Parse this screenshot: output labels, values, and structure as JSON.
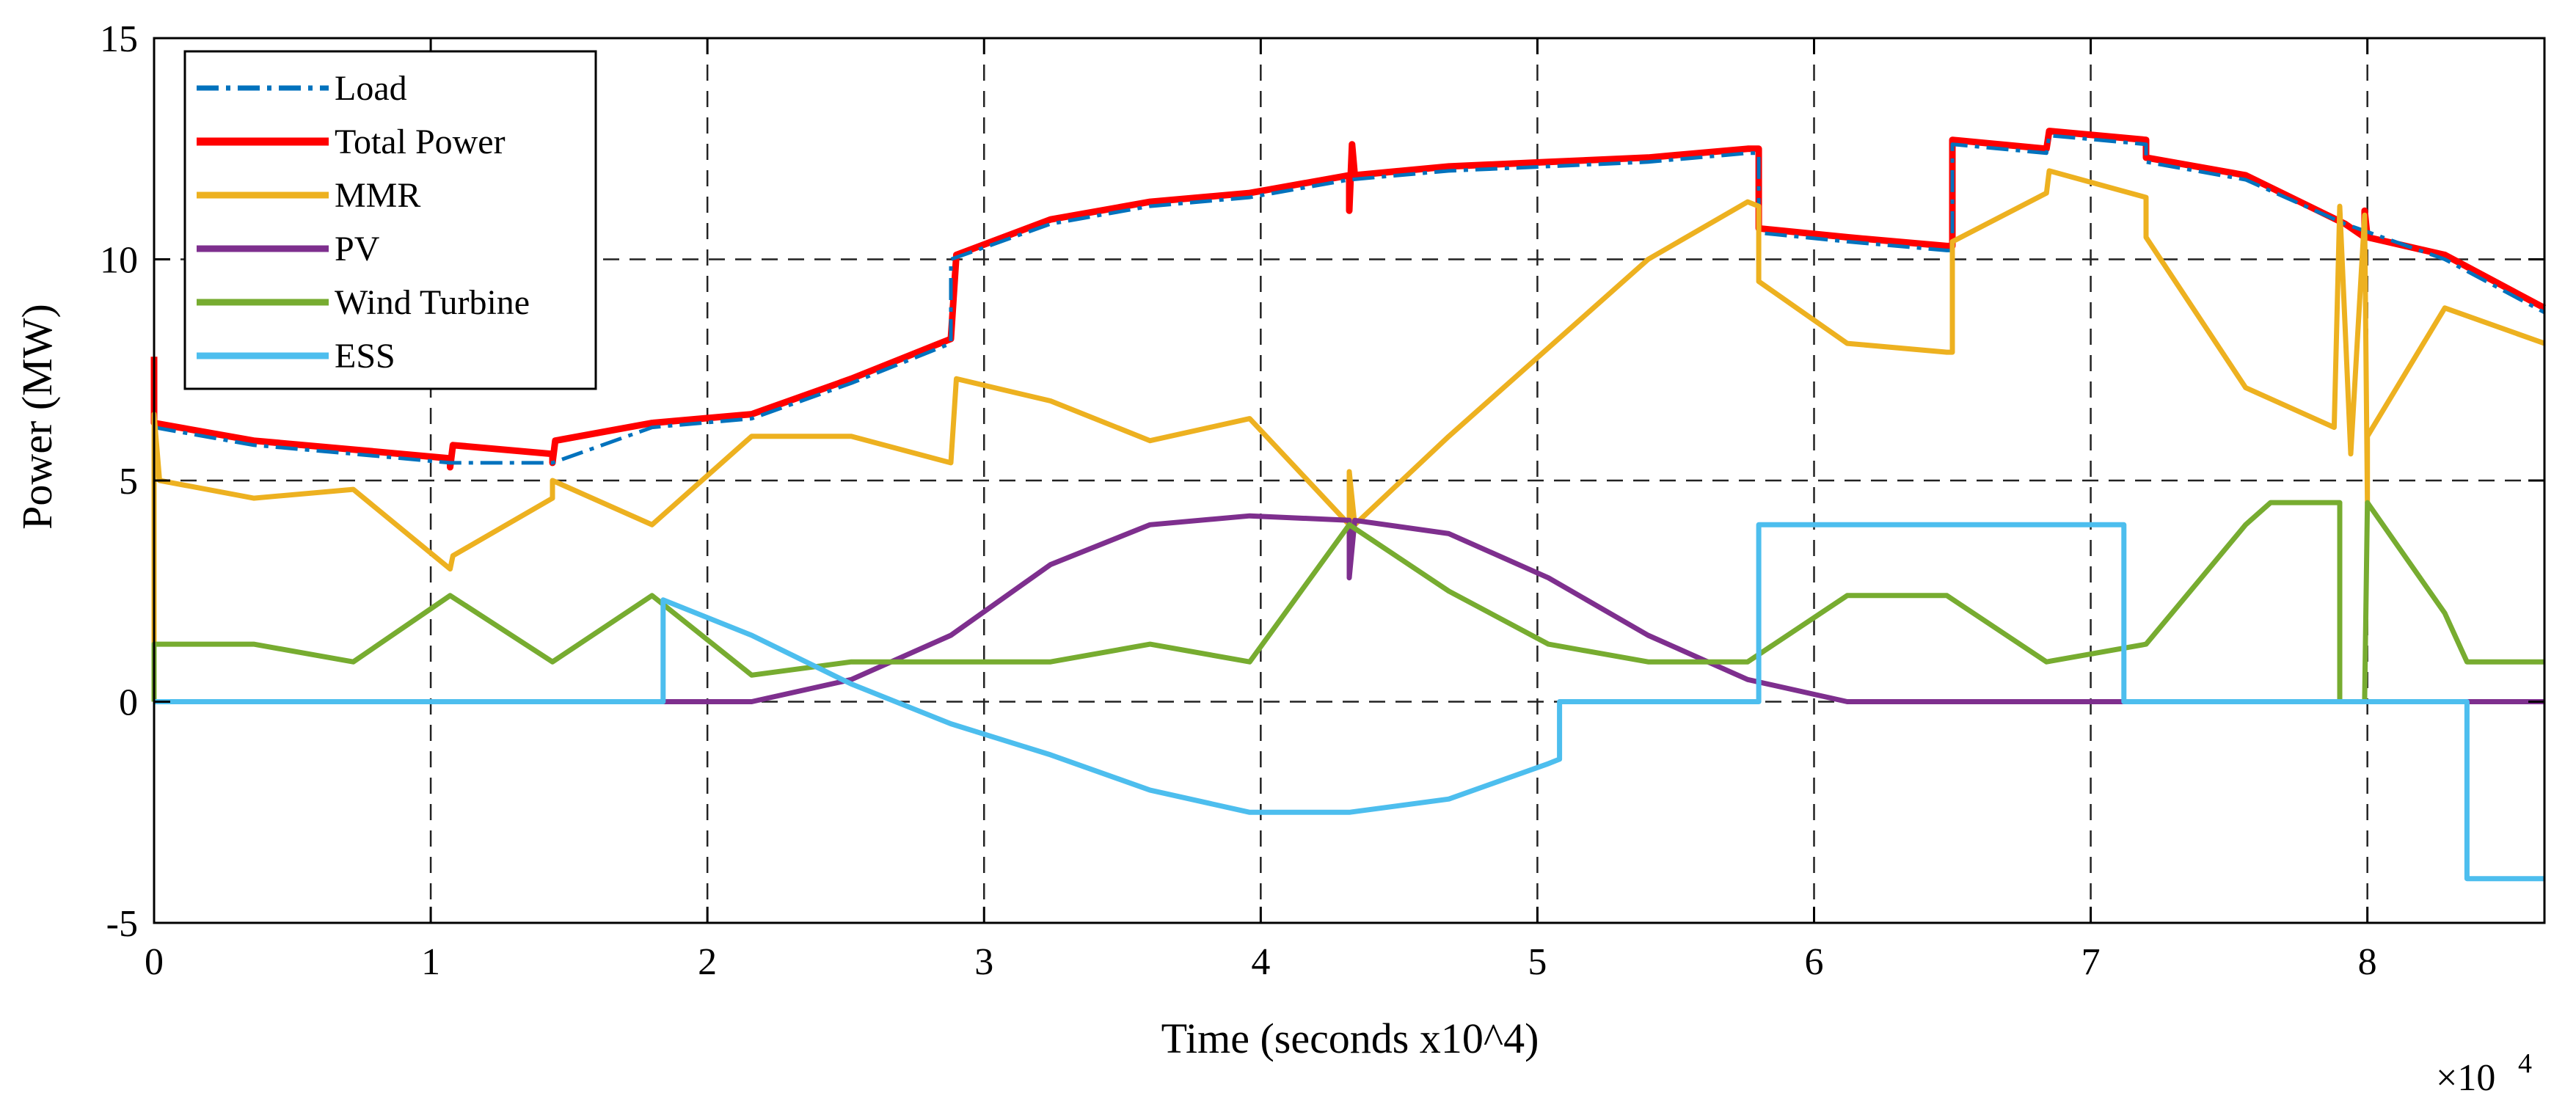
{
  "chart_data": {
    "type": "line",
    "title": "",
    "xlabel": "Time (seconds x10^4)",
    "ylabel": "Power (MW)",
    "x_exponent_label": "×10",
    "x_exponent_power": "4",
    "xlim": [
      0,
      8.64
    ],
    "ylim": [
      -5,
      15
    ],
    "xticks": [
      0,
      1,
      2,
      3,
      4,
      5,
      6,
      7,
      8
    ],
    "xtick_labels": [
      "0",
      "1",
      "2",
      "3",
      "4",
      "5",
      "6",
      "7",
      "8"
    ],
    "yticks": [
      -5,
      0,
      5,
      10,
      15
    ],
    "ytick_labels": [
      "-5",
      "0",
      "5",
      "10",
      "15"
    ],
    "grid": true,
    "legend_position": "top-left",
    "series": [
      {
        "name": "Load",
        "color": "#0072BD",
        "style": "dashdot",
        "width": 5,
        "points": [
          [
            0,
            6.2
          ],
          [
            0.36,
            5.8
          ],
          [
            0.72,
            5.6
          ],
          [
            1.07,
            5.4
          ],
          [
            1.44,
            5.4
          ],
          [
            1.8,
            6.2
          ],
          [
            2.16,
            6.4
          ],
          [
            2.52,
            7.2
          ],
          [
            2.88,
            8.1
          ],
          [
            2.88,
            10.0
          ],
          [
            3.24,
            10.8
          ],
          [
            3.6,
            11.2
          ],
          [
            3.96,
            11.4
          ],
          [
            4.32,
            11.8
          ],
          [
            4.68,
            12.0
          ],
          [
            5.04,
            12.1
          ],
          [
            5.4,
            12.2
          ],
          [
            5.76,
            12.4
          ],
          [
            5.8,
            12.4
          ],
          [
            5.8,
            10.6
          ],
          [
            6.12,
            10.4
          ],
          [
            6.48,
            10.2
          ],
          [
            6.5,
            10.2
          ],
          [
            6.5,
            12.6
          ],
          [
            6.84,
            12.4
          ],
          [
            6.85,
            12.8
          ],
          [
            7.2,
            12.6
          ],
          [
            7.2,
            12.2
          ],
          [
            7.56,
            11.8
          ],
          [
            7.92,
            10.8
          ],
          [
            8.28,
            10.0
          ],
          [
            8.64,
            8.8
          ]
        ]
      },
      {
        "name": "Total Power",
        "color": "#FF0000",
        "style": "solid",
        "width": 9,
        "points": [
          [
            0,
            7.8
          ],
          [
            0,
            6.3
          ],
          [
            0.36,
            5.9
          ],
          [
            0.72,
            5.7
          ],
          [
            1.07,
            5.5
          ],
          [
            1.07,
            5.3
          ],
          [
            1.08,
            5.8
          ],
          [
            1.44,
            5.6
          ],
          [
            1.44,
            5.4
          ],
          [
            1.45,
            5.9
          ],
          [
            1.8,
            6.3
          ],
          [
            2.16,
            6.5
          ],
          [
            2.52,
            7.3
          ],
          [
            2.88,
            8.2
          ],
          [
            2.9,
            10.1
          ],
          [
            3.24,
            10.9
          ],
          [
            3.6,
            11.3
          ],
          [
            3.96,
            11.5
          ],
          [
            4.32,
            11.9
          ],
          [
            4.32,
            11.1
          ],
          [
            4.33,
            12.6
          ],
          [
            4.34,
            11.9
          ],
          [
            4.68,
            12.1
          ],
          [
            5.04,
            12.2
          ],
          [
            5.4,
            12.3
          ],
          [
            5.76,
            12.5
          ],
          [
            5.8,
            12.5
          ],
          [
            5.8,
            10.7
          ],
          [
            6.12,
            10.5
          ],
          [
            6.48,
            10.3
          ],
          [
            6.5,
            10.3
          ],
          [
            6.5,
            12.7
          ],
          [
            6.84,
            12.5
          ],
          [
            6.85,
            12.9
          ],
          [
            7.2,
            12.7
          ],
          [
            7.2,
            12.3
          ],
          [
            7.56,
            11.9
          ],
          [
            7.92,
            10.8
          ],
          [
            7.99,
            10.5
          ],
          [
            7.99,
            11.1
          ],
          [
            8.0,
            10.5
          ],
          [
            8.28,
            10.1
          ],
          [
            8.64,
            8.9
          ]
        ]
      },
      {
        "name": "MMR",
        "color": "#EDB120",
        "style": "solid",
        "width": 7,
        "points": [
          [
            0,
            1.3
          ],
          [
            0,
            6.5
          ],
          [
            0.02,
            5.0
          ],
          [
            0.36,
            4.6
          ],
          [
            0.72,
            4.8
          ],
          [
            1.07,
            3.0
          ],
          [
            1.08,
            3.3
          ],
          [
            1.44,
            4.6
          ],
          [
            1.44,
            5.0
          ],
          [
            1.8,
            4.0
          ],
          [
            2.16,
            6.0
          ],
          [
            2.52,
            6.0
          ],
          [
            2.88,
            5.4
          ],
          [
            2.9,
            7.3
          ],
          [
            3.24,
            6.8
          ],
          [
            3.6,
            5.9
          ],
          [
            3.96,
            6.4
          ],
          [
            4.32,
            4.0
          ],
          [
            4.32,
            5.2
          ],
          [
            4.34,
            4.0
          ],
          [
            4.68,
            6.0
          ],
          [
            5.04,
            8.0
          ],
          [
            5.4,
            10.0
          ],
          [
            5.76,
            11.3
          ],
          [
            5.8,
            11.2
          ],
          [
            5.8,
            9.5
          ],
          [
            6.12,
            8.1
          ],
          [
            6.48,
            7.9
          ],
          [
            6.5,
            7.9
          ],
          [
            6.5,
            10.4
          ],
          [
            6.84,
            11.5
          ],
          [
            6.85,
            12.0
          ],
          [
            7.2,
            11.4
          ],
          [
            7.2,
            10.5
          ],
          [
            7.56,
            7.1
          ],
          [
            7.88,
            6.2
          ],
          [
            7.9,
            11.2
          ],
          [
            7.94,
            5.6
          ],
          [
            7.99,
            11.0
          ],
          [
            8.0,
            4.5
          ],
          [
            8.0,
            6.0
          ],
          [
            8.28,
            8.9
          ],
          [
            8.64,
            8.1
          ]
        ]
      },
      {
        "name": "PV",
        "color": "#7E2F8E",
        "style": "solid",
        "width": 7,
        "points": [
          [
            1.8,
            0
          ],
          [
            2.16,
            0
          ],
          [
            2.52,
            0.5
          ],
          [
            2.88,
            1.5
          ],
          [
            3.24,
            3.1
          ],
          [
            3.6,
            4.0
          ],
          [
            3.96,
            4.2
          ],
          [
            4.32,
            4.1
          ],
          [
            4.32,
            2.8
          ],
          [
            4.34,
            4.1
          ],
          [
            4.68,
            3.8
          ],
          [
            5.04,
            2.8
          ],
          [
            5.4,
            1.5
          ],
          [
            5.76,
            0.5
          ],
          [
            6.12,
            0
          ],
          [
            8.64,
            0
          ]
        ]
      },
      {
        "name": "Wind Turbine",
        "color": "#77AC30",
        "style": "solid",
        "width": 7,
        "points": [
          [
            0,
            0
          ],
          [
            0,
            1.3
          ],
          [
            0.36,
            1.3
          ],
          [
            0.72,
            0.9
          ],
          [
            1.07,
            2.4
          ],
          [
            1.44,
            0.9
          ],
          [
            1.8,
            2.4
          ],
          [
            2.16,
            0.6
          ],
          [
            2.52,
            0.9
          ],
          [
            2.88,
            0.9
          ],
          [
            3.24,
            0.9
          ],
          [
            3.6,
            1.3
          ],
          [
            3.96,
            0.9
          ],
          [
            4.32,
            4.0
          ],
          [
            4.68,
            2.5
          ],
          [
            5.04,
            1.3
          ],
          [
            5.4,
            0.9
          ],
          [
            5.76,
            0.9
          ],
          [
            6.12,
            2.4
          ],
          [
            6.48,
            2.4
          ],
          [
            6.84,
            0.9
          ],
          [
            7.2,
            1.3
          ],
          [
            7.56,
            4.0
          ],
          [
            7.65,
            4.5
          ],
          [
            7.9,
            4.5
          ],
          [
            7.9,
            0
          ],
          [
            7.99,
            0
          ],
          [
            8.0,
            4.5
          ],
          [
            8.28,
            2.0
          ],
          [
            8.36,
            0.9
          ],
          [
            8.64,
            0.9
          ]
        ]
      },
      {
        "name": "ESS",
        "color": "#4DBEEE",
        "style": "solid",
        "width": 7,
        "points": [
          [
            0,
            0
          ],
          [
            1.84,
            0
          ],
          [
            1.84,
            2.3
          ],
          [
            2.16,
            1.5
          ],
          [
            2.52,
            0.4
          ],
          [
            2.88,
            -0.5
          ],
          [
            3.24,
            -1.2
          ],
          [
            3.6,
            -2.0
          ],
          [
            3.96,
            -2.5
          ],
          [
            4.32,
            -2.5
          ],
          [
            4.68,
            -2.2
          ],
          [
            5.04,
            -1.4
          ],
          [
            5.08,
            -1.3
          ],
          [
            5.08,
            0
          ],
          [
            5.8,
            0
          ],
          [
            5.8,
            4.0
          ],
          [
            7.12,
            4.0
          ],
          [
            7.12,
            0
          ],
          [
            8.36,
            0
          ],
          [
            8.36,
            -4.0
          ],
          [
            8.64,
            -4.0
          ]
        ]
      }
    ]
  }
}
